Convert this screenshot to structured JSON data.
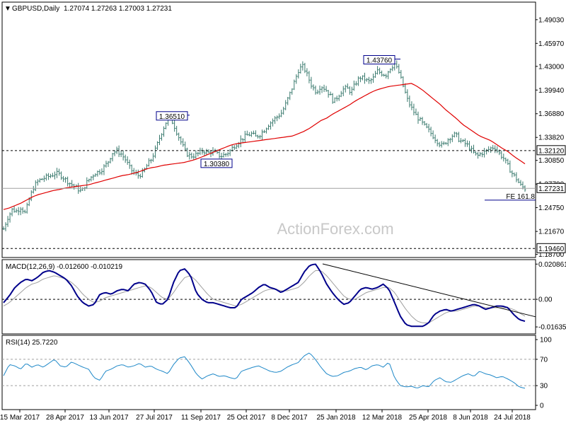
{
  "header": {
    "symbol": "GBPUSD,Daily",
    "ohlc": "1.27074 1.27263 1.27003 1.27231"
  },
  "watermark": "ActionForex.com",
  "chart_data": [
    {
      "type": "bar",
      "name": "price",
      "x_labels": [
        "15 Mar 2017",
        "28 Apr 2017",
        "13 Jun 2017",
        "27 Jul 2017",
        "11 Sep 2017",
        "25 Oct 2017",
        "8 Dec 2017",
        "25 Jan 2018",
        "12 Mar 2018",
        "25 Apr 2018",
        "8 Jun 2018",
        "24 Jul 2018"
      ],
      "y_ticks": [
        "1.49030",
        "1.45970",
        "1.43000",
        "1.39940",
        "1.36880",
        "1.33820",
        "1.30850",
        "1.27790",
        "1.24750",
        "1.21670",
        "1.18700"
      ],
      "ylim": [
        1.183,
        1.513
      ],
      "close_path": [
        1.22,
        1.235,
        1.245,
        1.243,
        1.248,
        1.24,
        1.26,
        1.275,
        1.282,
        1.285,
        1.287,
        1.289,
        1.292,
        1.29,
        1.285,
        1.28,
        1.276,
        1.272,
        1.268,
        1.279,
        1.286,
        1.292,
        1.294,
        1.299,
        1.306,
        1.318,
        1.321,
        1.317,
        1.31,
        1.299,
        1.292,
        1.289,
        1.292,
        1.302,
        1.31,
        1.323,
        1.339,
        1.353,
        1.365,
        1.357,
        1.343,
        1.33,
        1.318,
        1.314,
        1.315,
        1.318,
        1.321,
        1.318,
        1.32,
        1.317,
        1.314,
        1.316,
        1.32,
        1.327,
        1.332,
        1.337,
        1.341,
        1.343,
        1.339,
        1.342,
        1.348,
        1.355,
        1.36,
        1.365,
        1.37,
        1.382,
        1.396,
        1.411,
        1.427,
        1.43,
        1.417,
        1.404,
        1.397,
        1.405,
        1.401,
        1.394,
        1.384,
        1.392,
        1.4,
        1.402,
        1.397,
        1.408,
        1.416,
        1.414,
        1.41,
        1.414,
        1.424,
        1.421,
        1.419,
        1.428,
        1.433,
        1.422,
        1.404,
        1.386,
        1.375,
        1.366,
        1.359,
        1.352,
        1.346,
        1.339,
        1.332,
        1.327,
        1.334,
        1.34,
        1.342,
        1.334,
        1.331,
        1.327,
        1.319,
        1.314,
        1.318,
        1.32,
        1.324,
        1.326,
        1.318,
        1.312,
        1.302,
        1.292,
        1.285,
        1.276,
        1.272
      ],
      "sma_path": [
        1.245,
        1.247,
        1.25,
        1.253,
        1.257,
        1.261,
        1.264,
        1.266,
        1.268,
        1.27,
        1.271,
        1.273,
        1.274,
        1.275,
        1.276,
        1.277,
        1.279,
        1.281,
        1.283,
        1.285,
        1.287,
        1.289,
        1.29,
        1.292,
        1.294,
        1.297,
        1.299,
        1.3,
        1.302,
        1.303,
        1.304,
        1.305,
        1.306,
        1.308,
        1.31,
        1.313,
        1.316,
        1.319,
        1.322,
        1.325,
        1.328,
        1.33,
        1.331,
        1.332,
        1.333,
        1.334,
        1.335,
        1.336,
        1.337,
        1.338,
        1.339,
        1.34,
        1.343,
        1.346,
        1.35,
        1.355,
        1.36,
        1.363,
        1.368,
        1.372,
        1.376,
        1.38,
        1.385,
        1.389,
        1.393,
        1.397,
        1.4,
        1.402,
        1.404,
        1.405,
        1.406,
        1.407,
        1.408,
        1.404,
        1.399,
        1.393,
        1.387,
        1.381,
        1.374,
        1.368,
        1.362,
        1.355,
        1.35,
        1.345,
        1.34,
        1.337,
        1.334,
        1.329,
        1.324,
        1.32,
        1.314,
        1.309,
        1.304
      ],
      "labels": [
        {
          "text": "1.36510",
          "value": 1.3651
        },
        {
          "text": "1.30380",
          "value": 1.3038
        },
        {
          "text": "1.43760",
          "value": 1.4376
        },
        {
          "text": "1.32120",
          "value": 1.3212
        },
        {
          "text": "1.27231",
          "value": 1.27231
        },
        {
          "text": "1.19460",
          "value": 1.1946
        },
        {
          "text": "FE 161.8",
          "value": 1.259
        }
      ],
      "levels": [
        1.3212,
        1.27231,
        1.1946
      ],
      "colors": {
        "price": "#3a7a6e",
        "sma": "#e00000",
        "level": "#000000"
      }
    },
    {
      "type": "line",
      "name": "MACD(12,26,9)",
      "title": "MACD(12,26,9) -0.012600 -0.010219",
      "y_ticks": [
        "0.020861",
        "0.00",
        "-0.016357"
      ],
      "ylim": [
        -0.0205,
        0.0235
      ],
      "macd_path": [
        -0.002,
        0.002,
        0.007,
        0.01,
        0.012,
        0.011,
        0.013,
        0.016,
        0.017,
        0.016,
        0.014,
        0.012,
        0.008,
        0.002,
        -0.002,
        -0.004,
        -0.003,
        0.003,
        0.004,
        0.003,
        0.005,
        0.006,
        0.005,
        0.009,
        0.01,
        0.009,
        0.005,
        -0.002,
        -0.003,
        0.0,
        0.01,
        0.017,
        0.018,
        0.014,
        0.004,
        0.0,
        -0.002,
        -0.002,
        -0.003,
        -0.004,
        -0.005,
        -0.005,
        0.0,
        0.002,
        0.004,
        0.007,
        0.009,
        0.007,
        0.006,
        0.004,
        0.006,
        0.008,
        0.01,
        0.016,
        0.02,
        0.021,
        0.016,
        0.009,
        0.004,
        0.0,
        -0.003,
        -0.002,
        0.002,
        0.006,
        0.007,
        0.006,
        0.007,
        0.009,
        0.006,
        -0.002,
        -0.01,
        -0.015,
        -0.016,
        -0.016,
        -0.016,
        -0.014,
        -0.009,
        -0.007,
        -0.006,
        -0.007,
        -0.006,
        -0.005,
        -0.004,
        -0.003,
        -0.004,
        -0.006,
        -0.005,
        -0.004,
        -0.004,
        -0.005,
        -0.009,
        -0.012,
        -0.013
      ],
      "signal_path": [
        -0.004,
        -0.002,
        0.001,
        0.004,
        0.007,
        0.009,
        0.01,
        0.012,
        0.013,
        0.014,
        0.013,
        0.012,
        0.01,
        0.007,
        0.003,
        0.0,
        -0.002,
        -0.001,
        0.001,
        0.002,
        0.003,
        0.004,
        0.005,
        0.006,
        0.007,
        0.008,
        0.007,
        0.004,
        0.001,
        0.0,
        0.004,
        0.009,
        0.013,
        0.014,
        0.011,
        0.007,
        0.003,
        0.0,
        -0.001,
        -0.002,
        -0.003,
        -0.004,
        -0.003,
        -0.001,
        0.001,
        0.003,
        0.005,
        0.006,
        0.006,
        0.005,
        0.005,
        0.006,
        0.007,
        0.01,
        0.014,
        0.017,
        0.017,
        0.014,
        0.01,
        0.006,
        0.002,
        0.0,
        0.0,
        0.002,
        0.004,
        0.005,
        0.006,
        0.007,
        0.007,
        0.004,
        -0.001,
        -0.006,
        -0.01,
        -0.013,
        -0.014,
        -0.014,
        -0.012,
        -0.01,
        -0.008,
        -0.007,
        -0.007,
        -0.006,
        -0.005,
        -0.004,
        -0.004,
        -0.005,
        -0.005,
        -0.005,
        -0.005,
        -0.005,
        -0.006,
        -0.008,
        -0.01
      ],
      "trendline": [
        0.021,
        -0.0045
      ],
      "colors": {
        "macd": "#00008b",
        "signal": "#a0a0a0",
        "trend": "#000000"
      }
    },
    {
      "type": "line",
      "name": "RSI(14)",
      "title": "RSI(14) 25.7220",
      "y_ticks": [
        "100",
        "70",
        "30",
        "0"
      ],
      "ylim": [
        0,
        100
      ],
      "levels": [
        70,
        30
      ],
      "rsi_path": [
        45,
        62,
        60,
        55,
        64,
        58,
        62,
        58,
        64,
        70,
        60,
        58,
        66,
        62,
        58,
        55,
        42,
        38,
        52,
        55,
        60,
        62,
        58,
        60,
        64,
        58,
        60,
        55,
        52,
        48,
        62,
        72,
        74,
        62,
        48,
        40,
        45,
        48,
        44,
        45,
        42,
        40,
        52,
        55,
        58,
        60,
        56,
        52,
        50,
        52,
        58,
        62,
        65,
        75,
        80,
        70,
        58,
        48,
        44,
        45,
        50,
        52,
        56,
        58,
        54,
        60,
        62,
        58,
        66,
        42,
        30,
        28,
        29,
        26,
        30,
        28,
        38,
        42,
        36,
        35,
        40,
        45,
        48,
        44,
        52,
        48,
        46,
        42,
        44,
        40,
        35,
        28,
        26
      ],
      "colors": {
        "rsi": "#1e88c8",
        "level": "#a0a0a0"
      }
    }
  ]
}
